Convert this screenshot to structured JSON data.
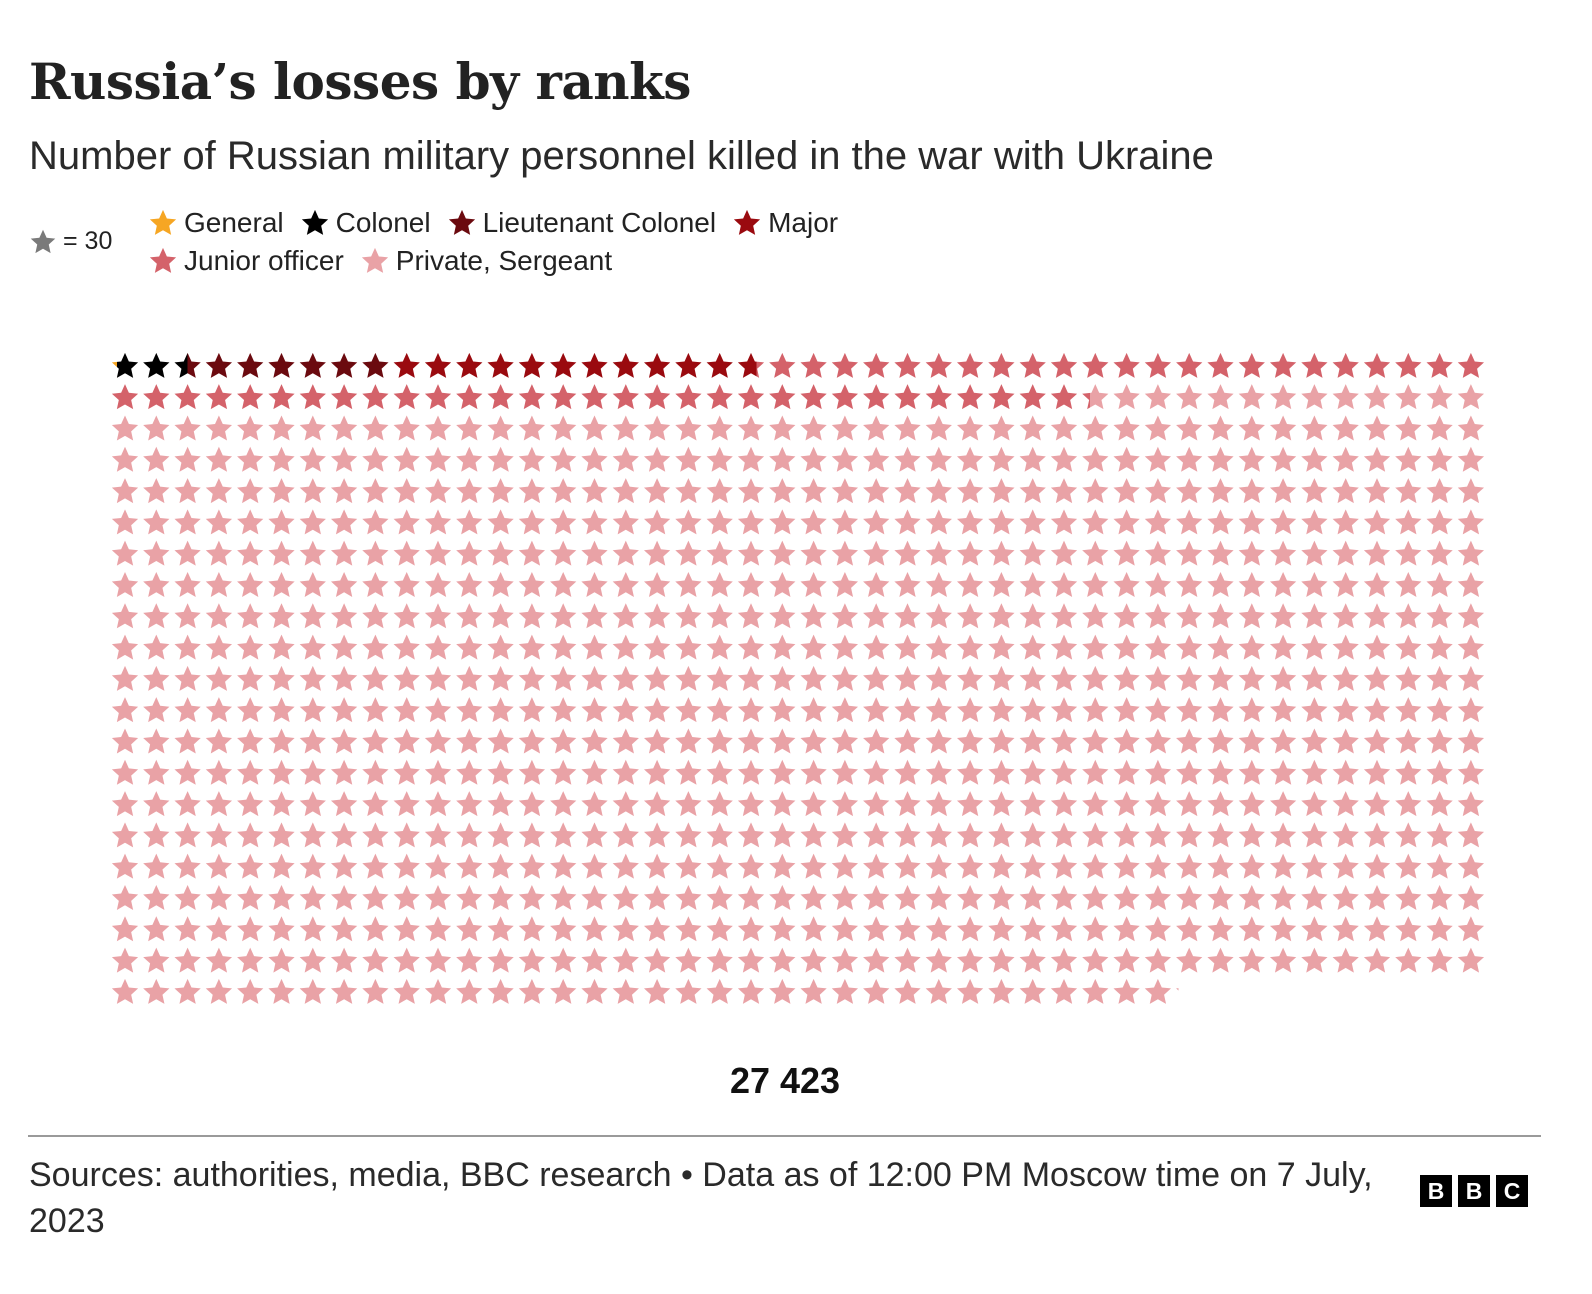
{
  "header": {
    "title": "Russia’s losses by ranks",
    "subtitle": "Number of Russian military personnel killed in the war with Ukraine"
  },
  "unit_note": {
    "label": "= 30",
    "icon": "star-icon",
    "color": "#7a7a7a"
  },
  "chart_data": {
    "type": "waffle",
    "unit_value": 30,
    "columns": 44,
    "total_label": "27 423",
    "categories": [
      {
        "name": "General",
        "stars": 0.2,
        "color": "#f6a623"
      },
      {
        "name": "Colonel",
        "stars": 2.3,
        "color": "#000000"
      },
      {
        "name": "Lieutenant Colonel",
        "stars": 6.5,
        "color": "#6b0a0f"
      },
      {
        "name": "Major",
        "stars": 11.7,
        "color": "#9a0a0f"
      },
      {
        "name": "Junior officer",
        "stars": 54.6,
        "color": "#d4626a"
      },
      {
        "name": "Private, Sergeant",
        "stars": 838.8,
        "color": "#e9a2a6"
      }
    ]
  },
  "footer": {
    "source": "Sources: authorities, media, BBC research • Data as of 12:00 PM Moscow time on 7 July, 2023",
    "logo_letters": [
      "B",
      "B",
      "C"
    ]
  }
}
